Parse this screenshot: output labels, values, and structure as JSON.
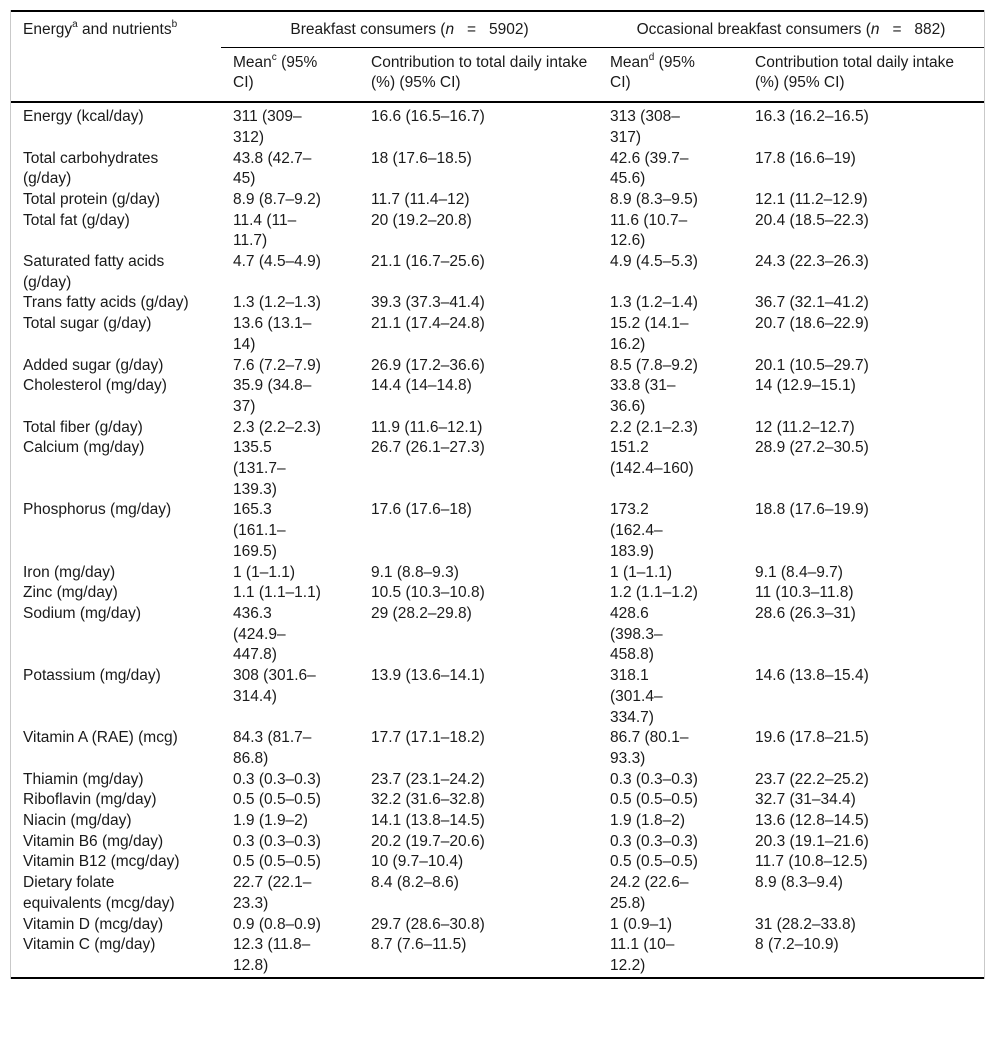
{
  "page": {
    "background_color": "#ffffff",
    "text_color": "#1a1a1a",
    "rule_color": "#000000",
    "frame_color": "#c9c9c9"
  },
  "table": {
    "corner_header": {
      "pre": "Energy",
      "sup1": "a",
      "mid": " and nutrients",
      "sup2": "b"
    },
    "groups": [
      {
        "pre": "Breakfast consumers (",
        "n": "n",
        "post": "   =   5902)"
      },
      {
        "pre": "Occasional breakfast consumers (",
        "n": "n",
        "post": "   =   882)"
      }
    ],
    "subheaders": [
      {
        "pre": "Mean",
        "sup": "c",
        "post": " (95% CI)"
      },
      {
        "text": "Contribution to total daily intake (%) (95% CI)"
      },
      {
        "pre": "Mean",
        "sup": "d",
        "post": " (95% CI)"
      },
      {
        "text": "Contribution total daily intake (%) (95% CI)"
      }
    ],
    "rows": [
      {
        "name": "Energy (kcal/day)",
        "bc_mean": "311 (309–312)",
        "bc_contrib": "16.6 (16.5–16.7)",
        "obc_mean": "313 (308–317)",
        "obc_contrib": "16.3 (16.2–16.5)"
      },
      {
        "name": "Total carbohydrates (g/day)",
        "bc_mean": "43.8 (42.7–45)",
        "bc_contrib": "18 (17.6–18.5)",
        "obc_mean": "42.6 (39.7–45.6)",
        "obc_contrib": "17.8 (16.6–19)"
      },
      {
        "name": "Total protein (g/day)",
        "bc_mean": "8.9 (8.7–9.2)",
        "bc_contrib": "11.7 (11.4–12)",
        "obc_mean": "8.9 (8.3–9.5)",
        "obc_contrib": "12.1 (11.2–12.9)"
      },
      {
        "name": "Total fat (g/day)",
        "bc_mean": "11.4 (11–11.7)",
        "bc_contrib": "20 (19.2–20.8)",
        "obc_mean": "11.6 (10.7–12.6)",
        "obc_contrib": "20.4 (18.5–22.3)"
      },
      {
        "name": "Saturated fatty acids (g/day)",
        "bc_mean": "4.7 (4.5–4.9)",
        "bc_contrib": "21.1 (16.7–25.6)",
        "obc_mean": "4.9 (4.5–5.3)",
        "obc_contrib": "24.3 (22.3–26.3)"
      },
      {
        "name": "Trans fatty acids (g/day)",
        "bc_mean": "1.3 (1.2–1.3)",
        "bc_contrib": "39.3 (37.3–41.4)",
        "obc_mean": "1.3 (1.2–1.4)",
        "obc_contrib": "36.7 (32.1–41.2)"
      },
      {
        "name": "Total sugar (g/day)",
        "bc_mean": "13.6 (13.1–14)",
        "bc_contrib": "21.1 (17.4–24.8)",
        "obc_mean": "15.2 (14.1–16.2)",
        "obc_contrib": "20.7 (18.6–22.9)"
      },
      {
        "name": "Added sugar (g/day)",
        "bc_mean": "7.6 (7.2–7.9)",
        "bc_contrib": "26.9 (17.2–36.6)",
        "obc_mean": "8.5 (7.8–9.2)",
        "obc_contrib": "20.1 (10.5–29.7)"
      },
      {
        "name": "Cholesterol (mg/day)",
        "bc_mean": "35.9 (34.8–37)",
        "bc_contrib": "14.4 (14–14.8)",
        "obc_mean": "33.8 (31–36.6)",
        "obc_contrib": "14 (12.9–15.1)"
      },
      {
        "name": "Total fiber (g/day)",
        "bc_mean": "2.3 (2.2–2.3)",
        "bc_contrib": "11.9 (11.6–12.1)",
        "obc_mean": "2.2 (2.1–2.3)",
        "obc_contrib": "12 (11.2–12.7)"
      },
      {
        "name": "Calcium (mg/day)",
        "bc_mean": "135.5 (131.7–139.3)",
        "bc_contrib": "26.7 (26.1–27.3)",
        "obc_mean": "151.2 (142.4–160)",
        "obc_contrib": "28.9 (27.2–30.5)"
      },
      {
        "name": "Phosphorus (mg/day)",
        "bc_mean": "165.3 (161.1–169.5)",
        "bc_contrib": "17.6 (17.6–18)",
        "obc_mean": "173.2 (162.4–183.9)",
        "obc_contrib": "18.8 (17.6–19.9)"
      },
      {
        "name": "Iron (mg/day)",
        "bc_mean": "1 (1–1.1)",
        "bc_contrib": "9.1 (8.8–9.3)",
        "obc_mean": "1 (1–1.1)",
        "obc_contrib": "9.1 (8.4–9.7)"
      },
      {
        "name": "Zinc (mg/day)",
        "bc_mean": "1.1 (1.1–1.1)",
        "bc_contrib": "10.5 (10.3–10.8)",
        "obc_mean": "1.2 (1.1–1.2)",
        "obc_contrib": "11 (10.3–11.8)"
      },
      {
        "name": "Sodium (mg/day)",
        "bc_mean": "436.3 (424.9–447.8)",
        "bc_contrib": "29 (28.2–29.8)",
        "obc_mean": "428.6 (398.3–458.8)",
        "obc_contrib": "28.6 (26.3–31)"
      },
      {
        "name": "Potassium (mg/day)",
        "bc_mean": "308 (301.6–314.4)",
        "bc_contrib": "13.9 (13.6–14.1)",
        "obc_mean": "318.1 (301.4–334.7)",
        "obc_contrib": "14.6 (13.8–15.4)"
      },
      {
        "name": "Vitamin A (RAE) (mcg)",
        "bc_mean": "84.3 (81.7–86.8)",
        "bc_contrib": "17.7 (17.1–18.2)",
        "obc_mean": "86.7 (80.1–93.3)",
        "obc_contrib": "19.6 (17.8–21.5)"
      },
      {
        "name": "Thiamin (mg/day)",
        "bc_mean": "0.3 (0.3–0.3)",
        "bc_contrib": "23.7 (23.1–24.2)",
        "obc_mean": "0.3 (0.3–0.3)",
        "obc_contrib": "23.7 (22.2–25.2)"
      },
      {
        "name": "Riboflavin (mg/day)",
        "bc_mean": "0.5 (0.5–0.5)",
        "bc_contrib": "32.2 (31.6–32.8)",
        "obc_mean": "0.5 (0.5–0.5)",
        "obc_contrib": "32.7 (31–34.4)"
      },
      {
        "name": "Niacin (mg/day)",
        "bc_mean": "1.9 (1.9–2)",
        "bc_contrib": "14.1 (13.8–14.5)",
        "obc_mean": "1.9 (1.8–2)",
        "obc_contrib": "13.6 (12.8–14.5)"
      },
      {
        "name": "Vitamin B6 (mg/day)",
        "bc_mean": "0.3 (0.3–0.3)",
        "bc_contrib": "20.2 (19.7–20.6)",
        "obc_mean": "0.3 (0.3–0.3)",
        "obc_contrib": "20.3 (19.1–21.6)"
      },
      {
        "name": "Vitamin B12 (mcg/day)",
        "bc_mean": "0.5 (0.5–0.5)",
        "bc_contrib": "10 (9.7–10.4)",
        "obc_mean": "0.5 (0.5–0.5)",
        "obc_contrib": "11.7 (10.8–12.5)"
      },
      {
        "name": "Dietary folate equivalents (mcg/day)",
        "bc_mean": "22.7 (22.1–23.3)",
        "bc_contrib": "8.4 (8.2–8.6)",
        "obc_mean": "24.2 (22.6–25.8)",
        "obc_contrib": "8.9 (8.3–9.4)"
      },
      {
        "name": "Vitamin D (mcg/day)",
        "bc_mean": "0.9 (0.8–0.9)",
        "bc_contrib": "29.7 (28.6–30.8)",
        "obc_mean": "1 (0.9–1)",
        "obc_contrib": "31 (28.2–33.8)"
      },
      {
        "name": "Vitamin C (mg/day)",
        "bc_mean": "12.3 (11.8–12.8)",
        "bc_contrib": "8.7 (7.6–11.5)",
        "obc_mean": "11.1 (10–12.2)",
        "obc_contrib": "8 (7.2–10.9)"
      }
    ]
  }
}
